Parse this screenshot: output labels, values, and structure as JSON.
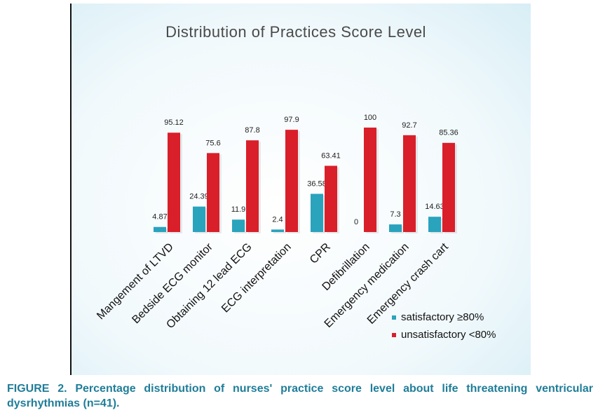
{
  "chart_data": {
    "type": "bar",
    "title": "Distribution of Practices Score Level",
    "categories": [
      "Mangement of LTVD",
      "Bedside ECG monitor",
      "Obtaining 12 lead ECG",
      "ECG interpretation",
      "CPR",
      "Defibrillation",
      "Emergency medication",
      "Emergency crash cart"
    ],
    "series": [
      {
        "name": "satisfactory ≥80%",
        "color": "#2aa3bd",
        "values": [
          4.87,
          24.39,
          11.9,
          2.4,
          36.58,
          0,
          7.3,
          14.63
        ]
      },
      {
        "name": "unsatisfactory <80%",
        "color": "#d91f2a",
        "values": [
          95.12,
          75.6,
          87.8,
          97.9,
          63.41,
          100,
          92.7,
          85.36
        ]
      }
    ]
  },
  "caption": "FIGURE 2. Percentage distribution of nurses' practice score level about life threatening ventricular dysrhythmias (n=41)."
}
